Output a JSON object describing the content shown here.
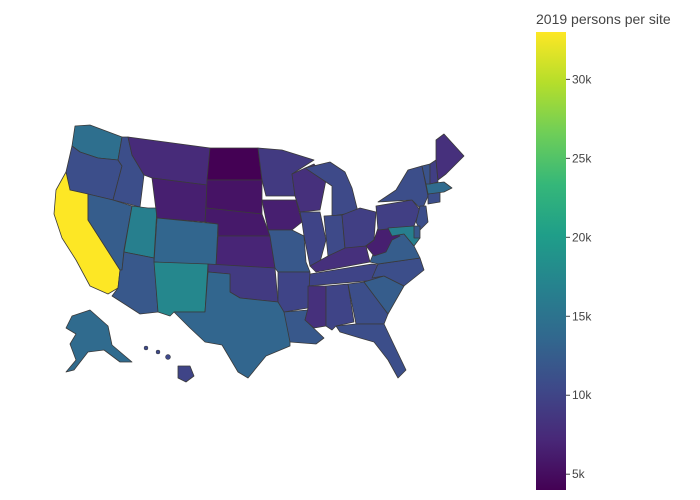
{
  "chart_data": {
    "type": "choropleth",
    "scope": "usa",
    "colorscale": "viridis",
    "colorbar": {
      "title": "2019 persons per site",
      "range": [
        4000,
        33000
      ],
      "ticks": [
        {
          "value": 5000,
          "label": "5k"
        },
        {
          "value": 10000,
          "label": "10k"
        },
        {
          "value": 15000,
          "label": "15k"
        },
        {
          "value": 20000,
          "label": "20k"
        },
        {
          "value": 25000,
          "label": "25k"
        },
        {
          "value": 30000,
          "label": "30k"
        }
      ]
    },
    "states": [
      {
        "code": "CA",
        "value": 33000
      },
      {
        "code": "NM",
        "value": 17500
      },
      {
        "code": "UT",
        "value": 16500
      },
      {
        "code": "MD",
        "value": 16500
      },
      {
        "code": "WA",
        "value": 14500
      },
      {
        "code": "AK",
        "value": 14000
      },
      {
        "code": "TX",
        "value": 13500
      },
      {
        "code": "CO",
        "value": 13500
      },
      {
        "code": "MA",
        "value": 14000
      },
      {
        "code": "NJ",
        "value": 11000
      },
      {
        "code": "OR",
        "value": 11000
      },
      {
        "code": "NV",
        "value": 12500
      },
      {
        "code": "AZ",
        "value": 12000
      },
      {
        "code": "FL",
        "value": 11000
      },
      {
        "code": "VA",
        "value": 12500
      },
      {
        "code": "NC",
        "value": 11000
      },
      {
        "code": "SC",
        "value": 12500
      },
      {
        "code": "GA",
        "value": 11000
      },
      {
        "code": "LA",
        "value": 12000
      },
      {
        "code": "ID",
        "value": 11000
      },
      {
        "code": "NY",
        "value": 11000
      },
      {
        "code": "PA",
        "value": 9500
      },
      {
        "code": "IL",
        "value": 10000
      },
      {
        "code": "MI",
        "value": 10500
      },
      {
        "code": "OH",
        "value": 9500
      },
      {
        "code": "IN",
        "value": 10500
      },
      {
        "code": "AR",
        "value": 10000
      },
      {
        "code": "OK",
        "value": 9000
      },
      {
        "code": "TN",
        "value": 10000
      },
      {
        "code": "MO",
        "value": 12000
      },
      {
        "code": "AL",
        "value": 10000
      },
      {
        "code": "MS",
        "value": 8000
      },
      {
        "code": "KY",
        "value": 8000
      },
      {
        "code": "WV",
        "value": 6500
      },
      {
        "code": "WI",
        "value": 8000
      },
      {
        "code": "MN",
        "value": 9000
      },
      {
        "code": "IA",
        "value": 6500
      },
      {
        "code": "KS",
        "value": 7000
      },
      {
        "code": "NE",
        "value": 6000
      },
      {
        "code": "SD",
        "value": 5500
      },
      {
        "code": "ND",
        "value": 4000
      },
      {
        "code": "MT",
        "value": 7500
      },
      {
        "code": "WY",
        "value": 6500
      },
      {
        "code": "ME",
        "value": 8000
      },
      {
        "code": "NH",
        "value": 9500
      },
      {
        "code": "VT",
        "value": 11500
      },
      {
        "code": "CT",
        "value": 11000
      },
      {
        "code": "DE",
        "value": 12000
      },
      {
        "code": "HI",
        "value": 10000
      }
    ]
  }
}
